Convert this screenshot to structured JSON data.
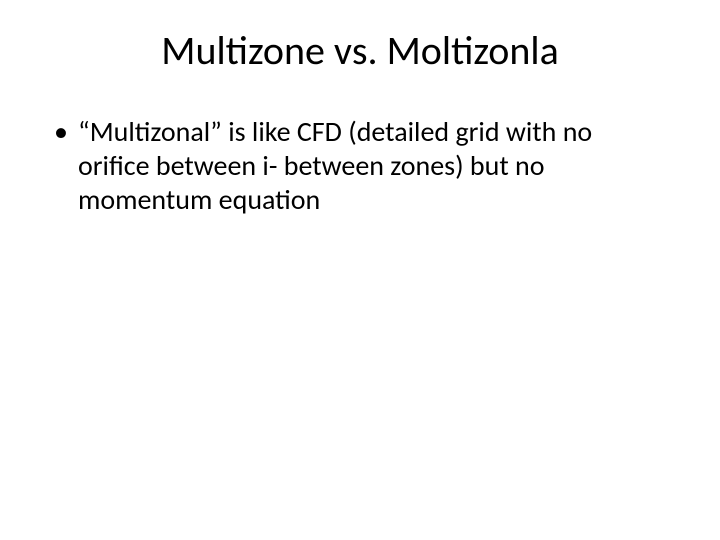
{
  "slide": {
    "title": "Multizone vs. Moltizonla",
    "title_fontsize": 40,
    "title_color": "#000000",
    "title_align": "center",
    "background_color": "#ffffff",
    "bullets": [
      {
        "text": "“Multizonal” is like CFD (detailed grid with no orifice between i- between zones) but no momentum equation",
        "fontsize": 28,
        "color": "#000000"
      }
    ],
    "font_family": "Calibri"
  }
}
